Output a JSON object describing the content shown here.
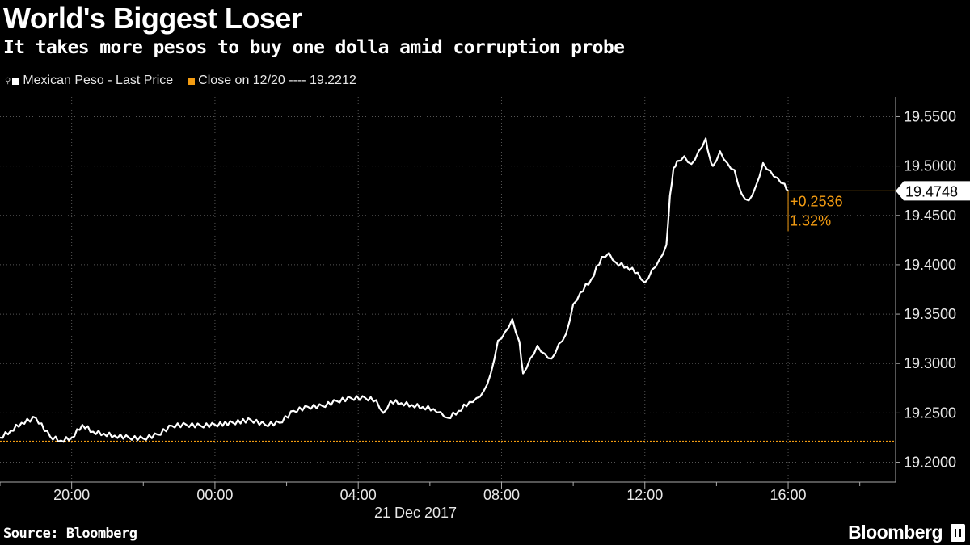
{
  "header": {
    "title": "World's Biggest Loser",
    "subtitle": "It takes more pesos to buy one dolla amid corruption probe"
  },
  "legend": {
    "series_label": "Mexican Peso - Last Price",
    "close_label": "Close on 12/20 ---- 19.2212"
  },
  "footer": {
    "source": "Source: Bloomberg",
    "brand": "Bloomberg"
  },
  "colors": {
    "background": "#000000",
    "line": "#ffffff",
    "accent": "#f39c12",
    "grid": "#555555"
  },
  "chart_data": {
    "type": "line",
    "title": "World's Biggest Loser",
    "subtitle": "It takes more pesos to buy one dolla amid corruption probe",
    "date_label": "21 Dec 2017",
    "x_unit": "hours relative to 00:00 on 21 Dec 2017",
    "xlim": [
      -6.0,
      19.0
    ],
    "ylim": [
      19.18,
      19.57
    ],
    "x_ticks": [
      {
        "x": -4,
        "label": "20:00"
      },
      {
        "x": 0,
        "label": "00:00"
      },
      {
        "x": 4,
        "label": "04:00"
      },
      {
        "x": 8,
        "label": "08:00"
      },
      {
        "x": 12,
        "label": "12:00"
      },
      {
        "x": 16,
        "label": "16:00"
      }
    ],
    "y_ticks": [
      19.2,
      19.25,
      19.3,
      19.35,
      19.4,
      19.45,
      19.5,
      19.55
    ],
    "y_tick_labels": [
      "19.2000",
      "19.2500",
      "19.3000",
      "19.3500",
      "19.4000",
      "19.4500",
      "19.5000",
      "19.5500"
    ],
    "reference_line": {
      "name": "Close on 12/20",
      "value": 19.2212
    },
    "last_value": 19.4748,
    "last_value_label": "19.4748",
    "change_label": "+0.2536",
    "change_pct_label": "1.32%",
    "series": [
      {
        "name": "Mexican Peso - Last Price",
        "x": [
          -6.0,
          -5.7,
          -5.4,
          -5.0,
          -4.6,
          -4.3,
          -4.0,
          -3.7,
          -3.4,
          -3.1,
          -2.8,
          -2.4,
          -2.0,
          -1.6,
          -1.2,
          -0.8,
          -0.4,
          0.0,
          0.5,
          1.0,
          1.4,
          1.8,
          2.2,
          2.6,
          3.0,
          3.4,
          3.8,
          4.2,
          4.5,
          4.7,
          4.9,
          5.2,
          5.5,
          5.8,
          6.1,
          6.3,
          6.5,
          6.8,
          7.1,
          7.3,
          7.5,
          7.7,
          7.9,
          8.1,
          8.3,
          8.5,
          8.6,
          8.8,
          9.0,
          9.2,
          9.4,
          9.6,
          9.8,
          10.0,
          10.2,
          10.5,
          10.8,
          11.0,
          11.2,
          11.5,
          11.8,
          12.0,
          12.2,
          12.4,
          12.6,
          12.7,
          12.8,
          12.9,
          13.1,
          13.3,
          13.5,
          13.7,
          13.8,
          13.9,
          14.1,
          14.3,
          14.5,
          14.7,
          14.9,
          15.1,
          15.3,
          15.5,
          15.7,
          15.9,
          16.0
        ],
        "y": [
          19.225,
          19.232,
          19.24,
          19.245,
          19.226,
          19.222,
          19.225,
          19.238,
          19.231,
          19.229,
          19.227,
          19.225,
          19.224,
          19.228,
          19.237,
          19.238,
          19.237,
          19.238,
          19.24,
          19.243,
          19.238,
          19.24,
          19.252,
          19.256,
          19.257,
          19.262,
          19.265,
          19.265,
          19.263,
          19.25,
          19.262,
          19.26,
          19.258,
          19.256,
          19.254,
          19.251,
          19.245,
          19.252,
          19.261,
          19.265,
          19.272,
          19.29,
          19.323,
          19.332,
          19.345,
          19.322,
          19.29,
          19.305,
          19.318,
          19.31,
          19.305,
          19.32,
          19.33,
          19.36,
          19.372,
          19.385,
          19.408,
          19.412,
          19.402,
          19.398,
          19.392,
          19.382,
          19.395,
          19.405,
          19.42,
          19.47,
          19.498,
          19.505,
          19.51,
          19.502,
          19.515,
          19.528,
          19.51,
          19.5,
          19.515,
          19.503,
          19.496,
          19.472,
          19.465,
          19.48,
          19.503,
          19.495,
          19.488,
          19.482,
          19.475
        ]
      }
    ]
  }
}
